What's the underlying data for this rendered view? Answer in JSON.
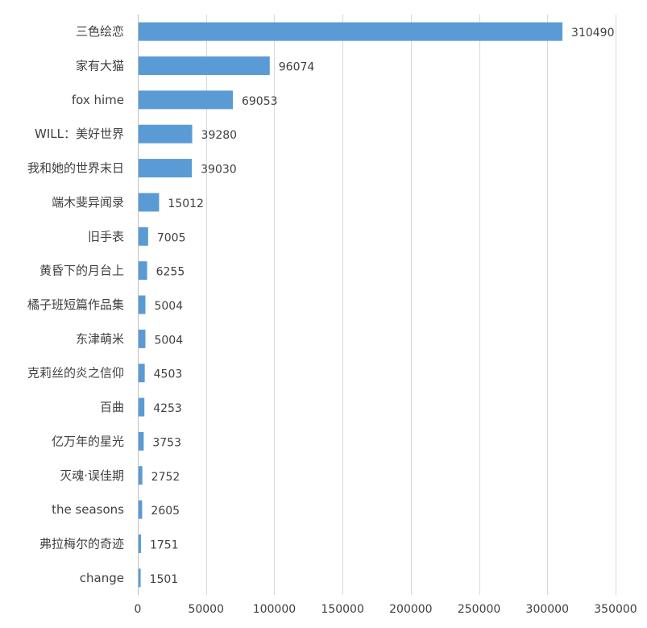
{
  "chart_data": {
    "type": "bar",
    "orientation": "horizontal",
    "title": "",
    "xlabel": "",
    "ylabel": "",
    "categories": [
      "三色绘恋",
      "家有大猫",
      "fox hime",
      "WILL：美好世界",
      "我和她的世界末日",
      "端木斐异闻录",
      "旧手表",
      "黄昏下的月台上",
      "橘子班短篇作品集",
      "东津萌米",
      "克莉丝的炎之信仰",
      "百曲",
      "亿万年的星光",
      "灭魂·误佳期",
      "the seasons",
      "弗拉梅尔的奇迹",
      "change"
    ],
    "values": [
      310490,
      96074,
      69053,
      39280,
      39030,
      15012,
      7005,
      6255,
      5004,
      5004,
      4503,
      4253,
      3753,
      2752,
      2605,
      1751,
      1501
    ],
    "value_labels": [
      "310490",
      "96074",
      "69053",
      "39280",
      "39030",
      "15012",
      "7005",
      "6255",
      "5004",
      "5004",
      "4503",
      "4253",
      "3753",
      "2752",
      "2605",
      "1751",
      "1501"
    ],
    "xlim": [
      0,
      350000
    ],
    "x_ticks": [
      "0",
      "50000",
      "100000",
      "150000",
      "200000",
      "250000",
      "300000",
      "350000"
    ],
    "x_tick_values": [
      0,
      50000,
      100000,
      150000,
      200000,
      250000,
      300000,
      350000
    ],
    "grid": "vertical",
    "legend": "none",
    "bar_color": "#5b9bd5",
    "grid_color": "#d9d9d9"
  }
}
